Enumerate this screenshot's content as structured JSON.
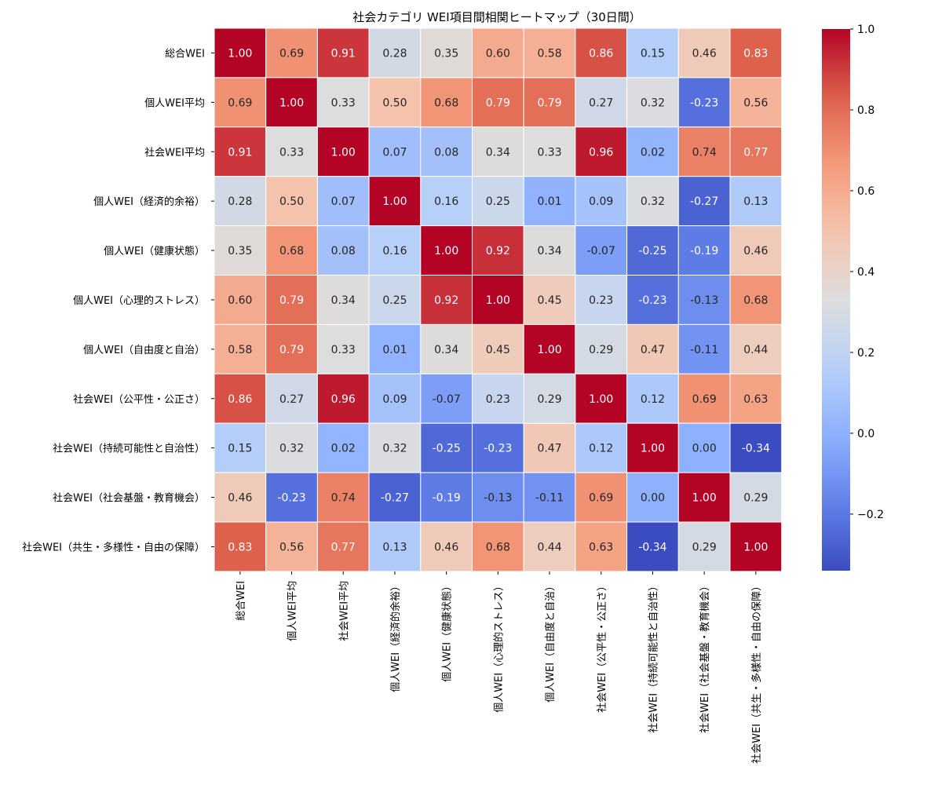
{
  "chart_data": {
    "type": "heatmap",
    "title": "社会カテゴリ WEI項目間相関ヒートマップ（30日間）",
    "xlabel": "",
    "ylabel": "",
    "colormap": "coolwarm",
    "vmin": -0.34,
    "vmax": 1.0,
    "labels": [
      "総合WEI",
      "個人WEI平均",
      "社会WEI平均",
      "個人WEI（経済的余裕）",
      "個人WEI（健康状態）",
      "個人WEI（心理的ストレス）",
      "個人WEI（自由度と自治）",
      "社会WEI（公平性・公正さ）",
      "社会WEI（持続可能性と自治性）",
      "社会WEI（社会基盤・教育機会）",
      "社会WEI（共生・多様性・自由の保障）"
    ],
    "matrix": [
      [
        1.0,
        0.69,
        0.91,
        0.28,
        0.35,
        0.6,
        0.58,
        0.86,
        0.15,
        0.46,
        0.83
      ],
      [
        0.69,
        1.0,
        0.33,
        0.5,
        0.68,
        0.79,
        0.79,
        0.27,
        0.32,
        -0.23,
        0.56
      ],
      [
        0.91,
        0.33,
        1.0,
        0.07,
        0.08,
        0.34,
        0.33,
        0.96,
        0.02,
        0.74,
        0.77
      ],
      [
        0.28,
        0.5,
        0.07,
        1.0,
        0.16,
        0.25,
        0.01,
        0.09,
        0.32,
        -0.27,
        0.13
      ],
      [
        0.35,
        0.68,
        0.08,
        0.16,
        1.0,
        0.92,
        0.34,
        -0.07,
        -0.25,
        -0.19,
        0.46
      ],
      [
        0.6,
        0.79,
        0.34,
        0.25,
        0.92,
        1.0,
        0.45,
        0.23,
        -0.23,
        -0.13,
        0.68
      ],
      [
        0.58,
        0.79,
        0.33,
        0.01,
        0.34,
        0.45,
        1.0,
        0.29,
        0.47,
        -0.11,
        0.44
      ],
      [
        0.86,
        0.27,
        0.96,
        0.09,
        -0.07,
        0.23,
        0.29,
        1.0,
        0.12,
        0.69,
        0.63
      ],
      [
        0.15,
        0.32,
        0.02,
        0.32,
        -0.25,
        -0.23,
        0.47,
        0.12,
        1.0,
        0.0,
        -0.34
      ],
      [
        0.46,
        -0.23,
        0.74,
        -0.27,
        -0.19,
        -0.13,
        -0.11,
        0.69,
        0.0,
        1.0,
        0.29
      ],
      [
        0.83,
        0.56,
        0.77,
        0.13,
        0.46,
        0.68,
        0.44,
        0.63,
        -0.34,
        0.29,
        1.0
      ]
    ],
    "value_format": "0.00",
    "colorbar": {
      "ticks": [
        1.0,
        0.8,
        0.6,
        0.4,
        0.2,
        0.0,
        -0.2
      ],
      "tick_labels": [
        "1.0",
        "0.8",
        "0.6",
        "0.4",
        "0.2",
        "0.0",
        "−0.2"
      ]
    }
  }
}
